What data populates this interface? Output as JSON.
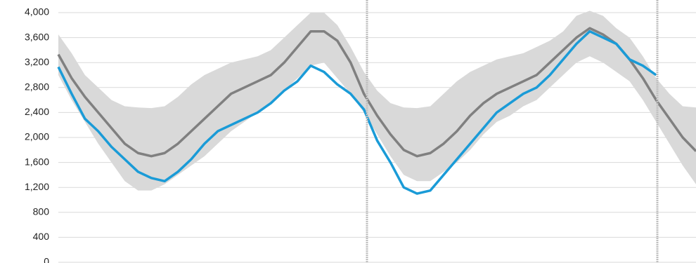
{
  "chart_data": {
    "type": "line",
    "categories": [
      null,
      null,
      null,
      null,
      null,
      null,
      null,
      null,
      null,
      null,
      null,
      null,
      null,
      null,
      null,
      null,
      null,
      null,
      null,
      null,
      null,
      null,
      null,
      null,
      null,
      null,
      null,
      null,
      null,
      null,
      null,
      null,
      null,
      null,
      null,
      null,
      null,
      null,
      null,
      null,
      null,
      null,
      null,
      null,
      null,
      null,
      null,
      null,
      null
    ],
    "band": {
      "color": "#d9d9d9",
      "upper": [
        3650,
        3350,
        3000,
        2800,
        2600,
        2500,
        2480,
        2470,
        2500,
        2650,
        2850,
        3000,
        3100,
        3200,
        3250,
        3300,
        3400,
        3600,
        3800,
        4000,
        4000,
        3800,
        3450,
        3050,
        2750,
        2550,
        2480,
        2470,
        2500,
        2700,
        2900,
        3050,
        3150,
        3250,
        3300,
        3350,
        3450,
        3550,
        3700,
        3950,
        4030,
        3950,
        3750,
        3600,
        3300,
        2950,
        2700,
        2500,
        2480
      ],
      "lower": [
        3000,
        2600,
        2250,
        1900,
        1600,
        1300,
        1150,
        1150,
        1250,
        1400,
        1550,
        1700,
        1900,
        2100,
        2250,
        2400,
        2550,
        2750,
        2950,
        3150,
        3200,
        2950,
        2700,
        2400,
        2050,
        1700,
        1400,
        1300,
        1300,
        1450,
        1600,
        1800,
        2050,
        2250,
        2350,
        2500,
        2600,
        2800,
        3000,
        3200,
        3300,
        3200,
        3050,
        2900,
        2600,
        2250,
        1900,
        1550,
        1250
      ]
    },
    "series": [
      {
        "color": "#808080",
        "values": [
          3330,
          2950,
          2650,
          2400,
          2150,
          1900,
          1750,
          1700,
          1750,
          1900,
          2100,
          2300,
          2500,
          2700,
          2800,
          2900,
          3000,
          3200,
          3450,
          3700,
          3700,
          3550,
          3200,
          2700,
          2350,
          2050,
          1800,
          1700,
          1750,
          1900,
          2100,
          2350,
          2550,
          2700,
          2800,
          2900,
          3000,
          3200,
          3400,
          3600,
          3750,
          3650,
          3500,
          3250,
          2950,
          2600,
          2300,
          2000,
          1780
        ]
      },
      {
        "color": "#1a9bd7",
        "values": [
          3130,
          2700,
          2300,
          2100,
          1850,
          1650,
          1450,
          1350,
          1300,
          1450,
          1650,
          1900,
          2100,
          2200,
          2300,
          2400,
          2550,
          2750,
          2900,
          3150,
          3050,
          2850,
          2700,
          2450,
          1950,
          1600,
          1200,
          1100,
          1150,
          1400,
          1650,
          1900,
          2150,
          2400,
          2550,
          2700,
          2800,
          3000,
          3250,
          3500,
          3700,
          3600,
          3500,
          3250,
          3150,
          3000,
          null,
          null,
          null
        ]
      }
    ],
    "ylim": [
      0,
      4000
    ],
    "yticks": [
      0,
      400,
      800,
      {
        "value": 1200,
        "label": "1,200"
      },
      {
        "value": 1600,
        "label": "1,600"
      },
      {
        "value": 2000,
        "label": "2,000"
      },
      {
        "value": 2400,
        "label": "2,400"
      },
      {
        "value": 2800,
        "label": "2,800"
      },
      {
        "value": 3200,
        "label": "3,200"
      },
      {
        "value": 3600,
        "label": "3,600"
      },
      {
        "value": 4000,
        "label": "4,000"
      }
    ],
    "grid": true
  }
}
